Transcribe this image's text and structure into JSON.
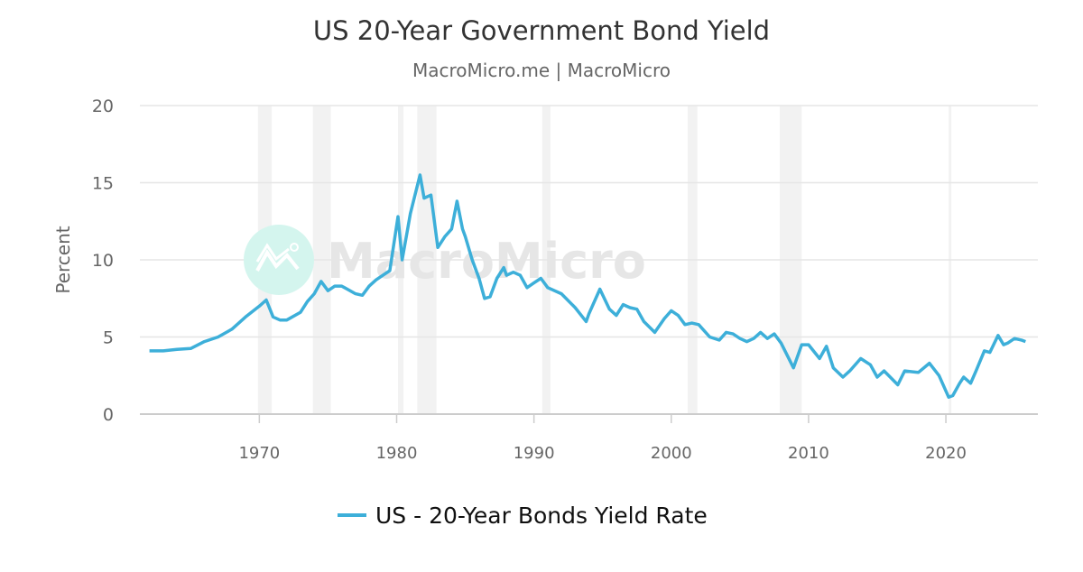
{
  "chart_data": {
    "type": "line",
    "title": "US 20-Year Government Bond Yield",
    "subtitle": "MacroMicro.me | MacroMicro",
    "ylabel": "Percent",
    "xlabel": "",
    "ylim": [
      0,
      20
    ],
    "xlim": [
      1961.3,
      2026.7
    ],
    "yticks": [
      0,
      5,
      10,
      15,
      20
    ],
    "xticks": [
      1970,
      1980,
      1990,
      2000,
      2010,
      2020
    ],
    "grid": true,
    "legend_placement": "bottom",
    "watermark": "MacroMicro",
    "colors": {
      "series": "#3dafd9",
      "recession": "#f2f2f2",
      "grid": "#e6e6e6",
      "watermark_logo": "#d4f5ee",
      "watermark_text": "#e6e6e6"
    },
    "recessions": [
      [
        1969.9,
        1970.9
      ],
      [
        1973.9,
        1975.2
      ],
      [
        1980.1,
        1980.5
      ],
      [
        1981.5,
        1982.9
      ],
      [
        1990.6,
        1991.2
      ],
      [
        2001.2,
        2001.9
      ],
      [
        2007.9,
        2009.5
      ],
      [
        2020.2,
        2020.4
      ]
    ],
    "series": [
      {
        "name": "US - 20-Year Bonds Yield Rate",
        "x": [
          1962,
          1963,
          1964,
          1965,
          1966,
          1967,
          1968,
          1969,
          1970,
          1970.5,
          1971,
          1971.5,
          1972,
          1973,
          1973.5,
          1974,
          1974.5,
          1975,
          1975.5,
          1976,
          1977,
          1977.5,
          1978,
          1978.5,
          1979,
          1979.5,
          1980.1,
          1980.4,
          1980.8,
          1981,
          1981.7,
          1982,
          1982.5,
          1983,
          1983.5,
          1984,
          1984.4,
          1984.8,
          1985,
          1985.5,
          1986,
          1986.4,
          1986.8,
          1987.3,
          1987.8,
          1988,
          1988.5,
          1989,
          1989.5,
          1990,
          1990.5,
          1991,
          1992,
          1993,
          1993.8,
          1994,
          1994.8,
          1995.5,
          1996,
          1996.5,
          1997,
          1997.5,
          1998,
          1998.8,
          1999.5,
          2000,
          2000.5,
          2001,
          2001.5,
          2002,
          2002.8,
          2003.5,
          2004,
          2004.5,
          2005,
          2005.5,
          2006,
          2006.5,
          2007,
          2007.5,
          2008,
          2008.9,
          2009.5,
          2010,
          2010.8,
          2011.3,
          2011.8,
          2012.5,
          2013,
          2013.8,
          2014.5,
          2015,
          2015.5,
          2016.5,
          2017,
          2018,
          2018.8,
          2019.5,
          2020.2,
          2020.5,
          2021,
          2021.3,
          2021.8,
          2022.2,
          2022.8,
          2023.2,
          2023.8,
          2024.2,
          2024.5,
          2025,
          2025.5,
          2025.8
        ],
        "values": [
          4.1,
          4.1,
          4.2,
          4.25,
          4.7,
          5.0,
          5.5,
          6.3,
          7.0,
          7.4,
          6.3,
          6.1,
          6.1,
          6.6,
          7.3,
          7.8,
          8.6,
          8.0,
          8.3,
          8.3,
          7.8,
          7.7,
          8.3,
          8.7,
          9.0,
          9.3,
          12.8,
          10.0,
          12.0,
          13.0,
          15.5,
          14.0,
          14.2,
          10.8,
          11.5,
          12.0,
          13.8,
          12.0,
          11.5,
          10.0,
          8.8,
          7.5,
          7.6,
          8.8,
          9.5,
          9.0,
          9.2,
          9.0,
          8.2,
          8.5,
          8.8,
          8.2,
          7.8,
          6.9,
          6.0,
          6.5,
          8.1,
          6.8,
          6.4,
          7.1,
          6.9,
          6.8,
          6.0,
          5.3,
          6.2,
          6.7,
          6.4,
          5.8,
          5.9,
          5.8,
          5.0,
          4.8,
          5.3,
          5.2,
          4.9,
          4.7,
          4.9,
          5.3,
          4.9,
          5.2,
          4.6,
          3.0,
          4.5,
          4.5,
          3.6,
          4.4,
          3.0,
          2.4,
          2.8,
          3.6,
          3.2,
          2.4,
          2.8,
          1.9,
          2.8,
          2.7,
          3.3,
          2.5,
          1.1,
          1.2,
          2.0,
          2.4,
          2.0,
          2.8,
          4.1,
          4.0,
          5.1,
          4.5,
          4.6,
          4.9,
          4.8,
          4.7
        ]
      }
    ]
  }
}
